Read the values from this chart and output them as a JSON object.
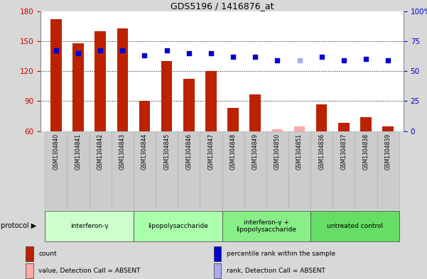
{
  "title": "GDS5196 / 1416876_at",
  "samples": [
    "GSM1304840",
    "GSM1304841",
    "GSM1304842",
    "GSM1304843",
    "GSM1304844",
    "GSM1304845",
    "GSM1304846",
    "GSM1304847",
    "GSM1304848",
    "GSM1304849",
    "GSM1304850",
    "GSM1304851",
    "GSM1304836",
    "GSM1304837",
    "GSM1304838",
    "GSM1304839"
  ],
  "count_values": [
    172,
    148,
    160,
    163,
    90,
    130,
    112,
    120,
    83,
    97,
    62,
    65,
    87,
    68,
    74,
    65
  ],
  "count_absent": [
    false,
    false,
    false,
    false,
    false,
    false,
    false,
    false,
    false,
    false,
    true,
    true,
    false,
    false,
    false,
    false
  ],
  "rank_values": [
    67,
    65,
    67,
    67,
    63,
    67,
    65,
    65,
    62,
    62,
    59,
    59,
    62,
    59,
    60,
    59
  ],
  "rank_absent": [
    false,
    false,
    false,
    false,
    false,
    false,
    false,
    false,
    false,
    false,
    false,
    true,
    false,
    false,
    false,
    false
  ],
  "ylim_left": [
    60,
    180
  ],
  "ylim_right": [
    0,
    100
  ],
  "yticks_left": [
    60,
    90,
    120,
    150,
    180
  ],
  "yticks_right": [
    0,
    25,
    50,
    75,
    100
  ],
  "ytick_labels_right": [
    "0",
    "25",
    "50",
    "75",
    "100%"
  ],
  "protocols": [
    {
      "label": "interferon-γ",
      "start": 0,
      "end": 3,
      "color": "#ccffcc"
    },
    {
      "label": "lipopolysaccharide",
      "start": 4,
      "end": 7,
      "color": "#aaffaa"
    },
    {
      "label": "interferon-γ +\nlipopolysaccharide",
      "start": 8,
      "end": 11,
      "color": "#88ee88"
    },
    {
      "label": "untreated control",
      "start": 12,
      "end": 15,
      "color": "#66dd66"
    }
  ],
  "bar_color_present": "#bb2200",
  "bar_color_absent": "#ffaaaa",
  "dot_color_present": "#0000cc",
  "dot_color_absent": "#aaaaee",
  "bg_color": "#d8d8d8",
  "plot_bg": "#ffffff",
  "bar_width": 0.5,
  "legend_items": [
    {
      "label": "count",
      "color": "#bb2200"
    },
    {
      "label": "percentile rank within the sample",
      "color": "#0000cc"
    },
    {
      "label": "value, Detection Call = ABSENT",
      "color": "#ffaaaa"
    },
    {
      "label": "rank, Detection Call = ABSENT",
      "color": "#aaaaee"
    }
  ],
  "protocol_label": "protocol"
}
